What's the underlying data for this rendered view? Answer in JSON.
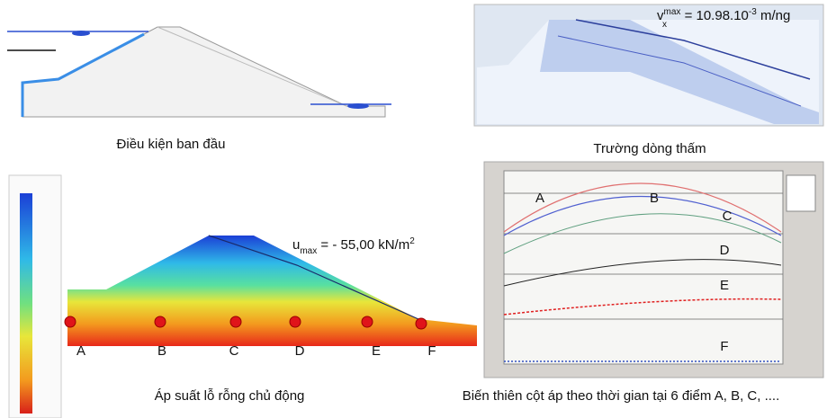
{
  "panels": {
    "initial": {
      "caption": "Điều kiện ban đầu"
    },
    "seepage": {
      "caption": "Trường dòng thấm",
      "velocity": {
        "symbol": "v",
        "sub": "x",
        "sup": "max",
        "value": " = 10.98.10",
        "exp": "-3",
        "unit": " m/ng"
      }
    },
    "pressure": {
      "caption": "Áp suất lỗ rỗng chủ động",
      "pressure_label": {
        "symbol": "u",
        "sub": "max",
        "value": " = - 55,00 kN/m",
        "exp": "2"
      },
      "points": [
        "A",
        "B",
        "C",
        "D",
        "E",
        "F"
      ]
    },
    "head_chart": {
      "caption": "Biến thiên cột áp theo thời gian tại 6 điểm A, B, C, ....",
      "curve_labels": [
        "A",
        "B",
        "C",
        "D",
        "E",
        "F"
      ]
    }
  }
}
